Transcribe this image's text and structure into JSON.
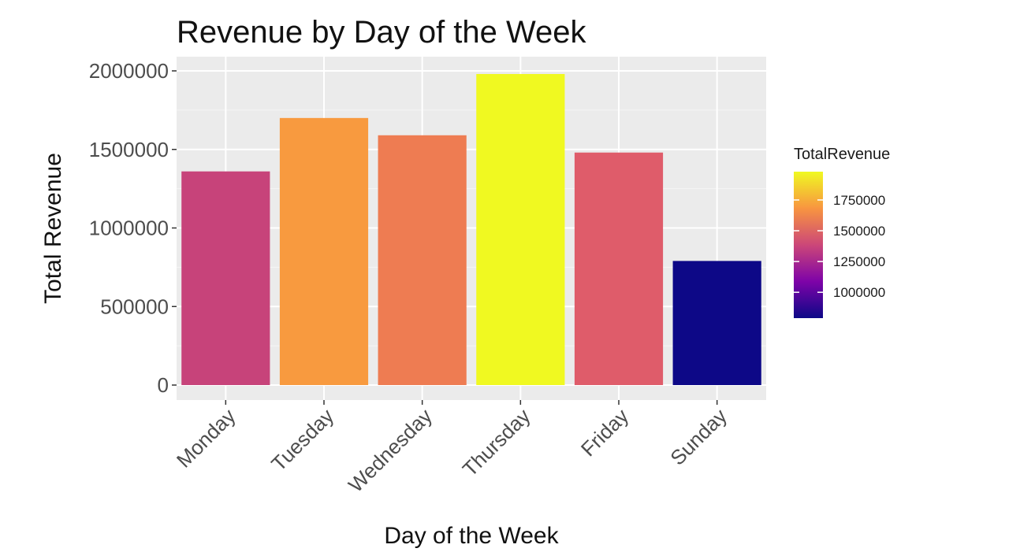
{
  "chart_data": {
    "type": "bar",
    "title": "Revenue by Day of the Week",
    "xlabel": "Day of the Week",
    "ylabel": "Total Revenue",
    "categories": [
      "Monday",
      "Tuesday",
      "Wednesday",
      "Thursday",
      "Friday",
      "Sunday"
    ],
    "values": [
      1360000,
      1700000,
      1590000,
      1980000,
      1480000,
      790000
    ],
    "ylim": [
      0,
      2000000
    ],
    "yticks": [
      0,
      500000,
      1000000,
      1500000,
      2000000
    ],
    "ytick_labels": [
      "0",
      "500000",
      "1000000",
      "1500000",
      "2000000"
    ],
    "grid": true,
    "panel_background": "#ebebeb",
    "fill_scale": "plasma",
    "legend": {
      "title": "TotalRevenue",
      "position": "right",
      "breaks": [
        1000000,
        1250000,
        1500000,
        1750000
      ],
      "labels": [
        "1000000",
        "1250000",
        "1500000",
        "1750000"
      ],
      "range": [
        790000,
        1980000
      ],
      "colors": [
        "#0d0887",
        "#7e03a8",
        "#cc4778",
        "#f89540",
        "#f0f921"
      ]
    },
    "bar_colors": [
      "#c7437a",
      "#f89a3f",
      "#ee7c52",
      "#f0f921",
      "#df5c6a",
      "#0d0887"
    ]
  }
}
